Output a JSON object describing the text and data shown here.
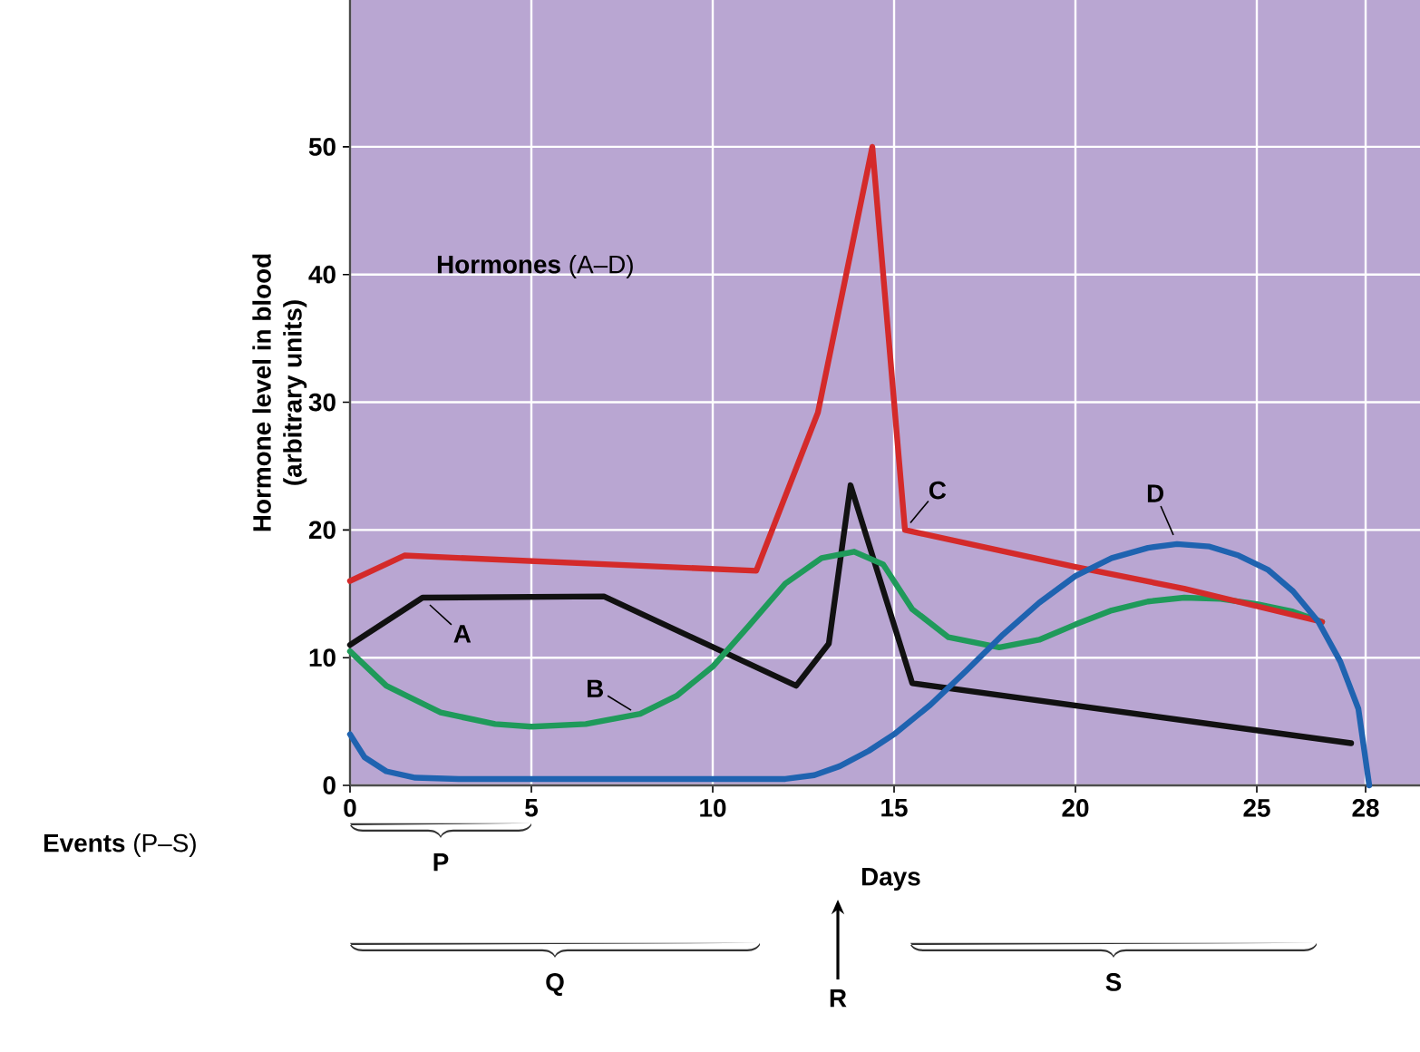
{
  "chart_data": {
    "type": "line",
    "xlabel": "Days",
    "ylabel": "Hormone level in blood\n(arbitrary units)",
    "xlim": [
      0,
      29.5
    ],
    "ylim": [
      0,
      61.5
    ],
    "xticks": [
      0,
      5,
      10,
      15,
      20,
      25,
      28
    ],
    "yticks": [
      0,
      10,
      20,
      30,
      40,
      50
    ],
    "grid": true,
    "series": [
      {
        "name": "A",
        "color": "#111111",
        "x": [
          0,
          2,
          7,
          12.3,
          13.2,
          13.8,
          15.5,
          27.6
        ],
        "values": [
          11,
          14.7,
          14.8,
          7.8,
          11.1,
          23.5,
          8,
          3.3
        ]
      },
      {
        "name": "B",
        "color": "#1f9a5a",
        "x": [
          0,
          1,
          2.5,
          4,
          5,
          6.5,
          8,
          9,
          10,
          11,
          12,
          13,
          13.9,
          14.7,
          15.5,
          16.5,
          17.9,
          19,
          20,
          21,
          22,
          23,
          24,
          25,
          26,
          26.8
        ],
        "values": [
          10.5,
          7.8,
          5.7,
          4.8,
          4.6,
          4.8,
          5.6,
          7,
          9.3,
          12.5,
          15.8,
          17.8,
          18.3,
          17.3,
          13.8,
          11.6,
          10.8,
          11.4,
          12.6,
          13.7,
          14.4,
          14.7,
          14.6,
          14.2,
          13.6,
          12.8
        ]
      },
      {
        "name": "C",
        "color": "#d42a2a",
        "x": [
          0,
          1.5,
          11.2,
          12.9,
          14.4,
          15.3,
          20,
          23,
          26.8
        ],
        "values": [
          16,
          18,
          16.8,
          29.2,
          50,
          20,
          17.1,
          15.4,
          12.8
        ]
      },
      {
        "name": "D",
        "color": "#1f63b0",
        "x": [
          0,
          0.4,
          1,
          1.8,
          3,
          12,
          12.8,
          13.5,
          14.3,
          15,
          16,
          17,
          18,
          19,
          20,
          21,
          22,
          22.8,
          23.7,
          24.5,
          25.3,
          26,
          26.7,
          27.3,
          27.8,
          28.1
        ],
        "values": [
          4,
          2.2,
          1.1,
          0.6,
          0.5,
          0.5,
          0.8,
          1.5,
          2.7,
          4,
          6.3,
          9,
          11.8,
          14.3,
          16.4,
          17.8,
          18.6,
          18.9,
          18.7,
          18,
          16.9,
          15.2,
          12.8,
          9.7,
          6,
          0
        ]
      }
    ],
    "annotations": [
      "**Hormones** (A–D)",
      "**Events** (P–S)",
      "P",
      "Q",
      "R",
      "S"
    ]
  }
}
